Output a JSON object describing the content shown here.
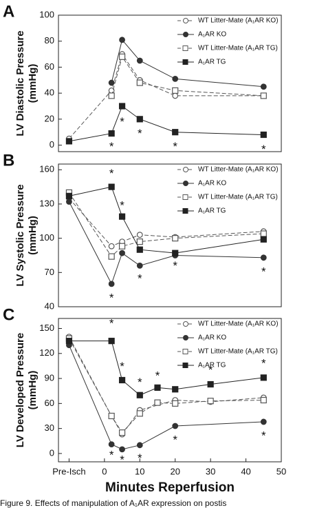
{
  "chart_data": [
    {
      "type": "line",
      "panel_label": "A",
      "ylabel": [
        "LV Diastolic Pressure",
        "(mmHg)"
      ],
      "xlim": [
        -13,
        50
      ],
      "ylim": [
        -5,
        100
      ],
      "yticks": [
        0,
        20,
        40,
        60,
        80,
        100
      ],
      "series": [
        {
          "name": "WT Litter-Mate (A₁AR KO)",
          "color": "#555",
          "marker": "circle",
          "filled": false,
          "dashed": true,
          "x": [
            -10,
            2,
            5,
            10,
            20,
            45
          ],
          "values": [
            5,
            42,
            70,
            50,
            38,
            38
          ]
        },
        {
          "name": "A₁AR KO",
          "color": "#333",
          "marker": "circle",
          "filled": true,
          "dashed": false,
          "x": [
            2,
            5,
            10,
            20,
            45
          ],
          "values": [
            48,
            81,
            65,
            51,
            45
          ]
        },
        {
          "name": "WT Litter-Mate (A₁AR TG)",
          "color": "#555",
          "marker": "square",
          "filled": false,
          "dashed": true,
          "x": [
            2,
            5,
            10,
            20,
            45
          ],
          "values": [
            38,
            68,
            48,
            42,
            38
          ]
        },
        {
          "name": "A₁AR TG",
          "color": "#222",
          "marker": "square",
          "filled": true,
          "dashed": false,
          "x": [
            -10,
            2,
            5,
            10,
            20,
            45
          ],
          "values": [
            3,
            9,
            30,
            20,
            10,
            8
          ]
        }
      ],
      "annotations": [
        {
          "text": "*",
          "x": 2,
          "y": 0
        },
        {
          "text": "*",
          "x": 5,
          "y": 19
        },
        {
          "text": "*",
          "x": 10,
          "y": 10
        },
        {
          "text": "*",
          "x": 20,
          "y": 0
        },
        {
          "text": "*",
          "x": 45,
          "y": -2
        }
      ]
    },
    {
      "type": "line",
      "panel_label": "B",
      "ylabel": [
        "LV Systolic Pressure",
        "(mmHg)"
      ],
      "xlim": [
        -13,
        50
      ],
      "ylim": [
        40,
        165
      ],
      "yticks": [
        40,
        70,
        100,
        130,
        160
      ],
      "series": [
        {
          "name": "WT Litter-Mate (A₁AR KO)",
          "color": "#555",
          "marker": "circle",
          "filled": false,
          "dashed": true,
          "x": [
            -10,
            2,
            5,
            10,
            20,
            45
          ],
          "values": [
            135,
            93,
            97,
            103,
            101,
            106
          ]
        },
        {
          "name": "A₁AR KO",
          "color": "#333",
          "marker": "circle",
          "filled": true,
          "dashed": false,
          "x": [
            -10,
            2,
            5,
            10,
            20,
            45
          ],
          "values": [
            132,
            60,
            87,
            76,
            85,
            83
          ]
        },
        {
          "name": "WT Litter-Mate (A₁AR TG)",
          "color": "#555",
          "marker": "square",
          "filled": false,
          "dashed": true,
          "x": [
            -10,
            2,
            5,
            10,
            20,
            45
          ],
          "values": [
            140,
            84,
            93,
            97,
            100,
            104
          ]
        },
        {
          "name": "A₁AR TG",
          "color": "#222",
          "marker": "square",
          "filled": true,
          "dashed": false,
          "x": [
            -10,
            2,
            5,
            10,
            20,
            45
          ],
          "values": [
            137,
            145,
            119,
            90,
            87,
            99
          ]
        }
      ],
      "annotations": [
        {
          "text": "*",
          "x": 2,
          "y": 158
        },
        {
          "text": "*",
          "x": 5,
          "y": 130
        },
        {
          "text": "*",
          "x": 2,
          "y": 49
        },
        {
          "text": "*",
          "x": 10,
          "y": 66
        },
        {
          "text": "*",
          "x": 20,
          "y": 77
        },
        {
          "text": "*",
          "x": 45,
          "y": 72
        }
      ]
    },
    {
      "type": "line",
      "panel_label": "C",
      "ylabel": [
        "LV Developed Pressure",
        "(mmHg)"
      ],
      "xlabel": "Minutes Reperfusion",
      "xlim": [
        -13,
        50
      ],
      "ylim": [
        -10,
        162
      ],
      "yticks": [
        0,
        30,
        60,
        90,
        120,
        150
      ],
      "xticks": [
        {
          "value": -10,
          "label": "Pre-Isch"
        },
        0,
        10,
        20,
        30,
        40,
        50
      ],
      "series": [
        {
          "name": "WT Litter-Mate (A₁AR KO)",
          "color": "#555",
          "marker": "circle",
          "filled": false,
          "dashed": true,
          "x": [
            -10,
            2,
            5,
            10,
            20,
            30,
            45
          ],
          "values": [
            140,
            45,
            23,
            52,
            64,
            62,
            67
          ]
        },
        {
          "name": "A₁AR KO",
          "color": "#333",
          "marker": "circle",
          "filled": true,
          "dashed": false,
          "x": [
            -10,
            2,
            5,
            10,
            20,
            45
          ],
          "values": [
            130,
            11,
            5,
            10,
            33,
            38
          ]
        },
        {
          "name": "WT Litter-Mate (A₁AR TG)",
          "color": "#555",
          "marker": "square",
          "filled": false,
          "dashed": true,
          "x": [
            -10,
            2,
            5,
            10,
            15,
            20,
            30,
            45
          ],
          "values": [
            138,
            45,
            25,
            48,
            61,
            60,
            63,
            64
          ]
        },
        {
          "name": "A₁AR TG",
          "color": "#222",
          "marker": "square",
          "filled": true,
          "dashed": false,
          "x": [
            -10,
            2,
            5,
            10,
            15,
            20,
            30,
            45
          ],
          "values": [
            135,
            135,
            88,
            70,
            79,
            77,
            83,
            91
          ]
        }
      ],
      "annotations": [
        {
          "text": "*",
          "x": 2,
          "y": 158
        },
        {
          "text": "*",
          "x": 5,
          "y": 106
        },
        {
          "text": "*",
          "x": 10,
          "y": 87
        },
        {
          "text": "*",
          "x": 15,
          "y": 95
        },
        {
          "text": "*",
          "x": 30,
          "y": 102
        },
        {
          "text": "*",
          "x": 45,
          "y": 110
        },
        {
          "text": "*",
          "x": 2,
          "y": 0
        },
        {
          "text": "*",
          "x": 5,
          "y": -6
        },
        {
          "text": "*",
          "x": 10,
          "y": -4
        },
        {
          "text": "*",
          "x": 20,
          "y": 18
        },
        {
          "text": "*",
          "x": 45,
          "y": 23
        }
      ]
    }
  ],
  "caption": "Figure 9. Effects of manipulation of A₁AR expression on postis"
}
